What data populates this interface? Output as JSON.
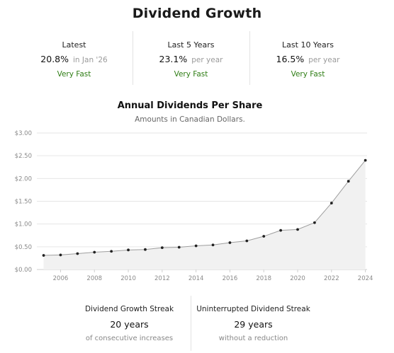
{
  "page": {
    "title": "Dividend Growth"
  },
  "summary": [
    {
      "label": "Latest",
      "value": "20.8%",
      "sub": "in Jan '26",
      "rating": "Very Fast"
    },
    {
      "label": "Last 5 Years",
      "value": "23.1%",
      "sub": "per year",
      "rating": "Very Fast"
    },
    {
      "label": "Last 10 Years",
      "value": "16.5%",
      "sub": "per year",
      "rating": "Very Fast"
    }
  ],
  "chart_data": {
    "type": "area",
    "title": "Annual Dividends Per Share",
    "subtitle": "Amounts in Canadian Dollars.",
    "x": [
      2005,
      2006,
      2007,
      2008,
      2009,
      2010,
      2011,
      2012,
      2013,
      2014,
      2015,
      2016,
      2017,
      2018,
      2019,
      2020,
      2021,
      2022,
      2023,
      2024
    ],
    "series": [
      {
        "values": [
          0.31,
          0.32,
          0.35,
          0.38,
          0.4,
          0.43,
          0.44,
          0.48,
          0.49,
          0.52,
          0.54,
          0.59,
          0.63,
          0.73,
          0.86,
          0.88,
          1.03,
          1.46,
          1.94,
          2.4
        ]
      }
    ],
    "xticks": [
      2006,
      2008,
      2010,
      2012,
      2014,
      2016,
      2018,
      2020,
      2022,
      2024
    ],
    "yticks": [
      0,
      0.5,
      1.0,
      1.5,
      2.0,
      2.5,
      3.0
    ],
    "ytick_labels": [
      "$0.00",
      "$0.50",
      "$1.00",
      "$1.50",
      "$2.00",
      "$2.50",
      "$3.00"
    ],
    "xlim": [
      2004.6,
      2024.1
    ],
    "ylim": [
      0,
      3.0
    ],
    "grid": true,
    "colors": {
      "line": "#9e9e9e",
      "fill": "#f1f1f1",
      "marker": "#222222",
      "grid": "#e6e6e6",
      "axis": "#cfcfcf"
    }
  },
  "streaks": [
    {
      "label": "Dividend Growth Streak",
      "value": "20 years",
      "sub": "of consecutive increases"
    },
    {
      "label": "Uninterrupted Dividend Streak",
      "value": "29 years",
      "sub": "without a reduction"
    }
  ]
}
